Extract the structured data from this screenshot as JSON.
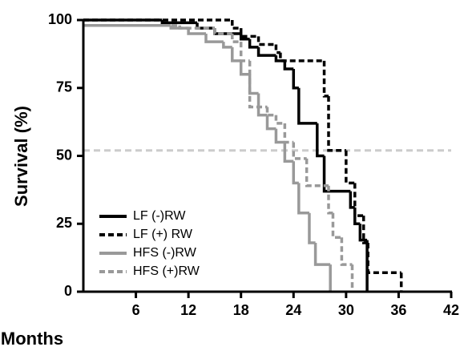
{
  "chart_data": {
    "type": "step",
    "x_label": "Months",
    "y_label": "Survival (%)",
    "xlim": [
      0,
      42
    ],
    "xticks": [
      6,
      12,
      18,
      24,
      30,
      36,
      42
    ],
    "ylim": [
      0,
      100
    ],
    "yticks": [
      0,
      25,
      50,
      75,
      100
    ],
    "reference_line": 52,
    "reference_color": "#cccccc",
    "legend": "lower left",
    "series": [
      {
        "name": "LF (-)RW",
        "color": "#000000",
        "dashed": false,
        "x": [
          0,
          9,
          13,
          15,
          18,
          19,
          20,
          22,
          23,
          24,
          24.6,
          26.7,
          27.5,
          30.5,
          31,
          31.6,
          32.4
        ],
        "values": [
          100,
          99,
          97,
          95,
          93,
          90,
          87,
          85,
          82,
          75,
          62,
          50,
          37,
          31,
          25,
          19,
          0
        ]
      },
      {
        "name": "LF (+) RW",
        "color": "#000000",
        "dashed": true,
        "x": [
          0,
          17,
          18,
          20,
          22,
          22.5,
          27.5,
          28,
          30,
          31,
          32,
          32.5,
          36.3
        ],
        "values": [
          100,
          97,
          94,
          91,
          88,
          85,
          72,
          52,
          40,
          28,
          18,
          7,
          0
        ]
      },
      {
        "name": "HFS (-)RW",
        "color": "#999999",
        "dashed": false,
        "x": [
          0,
          10,
          12,
          14,
          16,
          17,
          18,
          19,
          20,
          21,
          22,
          23,
          24,
          24.6,
          25.8,
          26.5,
          28.2
        ],
        "values": [
          98,
          97,
          95,
          92,
          90,
          85,
          80,
          73,
          65,
          60,
          55,
          48,
          40,
          29,
          18,
          10,
          0
        ]
      },
      {
        "name": "HFS (+)RW",
        "color": "#999999",
        "dashed": true,
        "x": [
          0,
          11,
          15,
          17,
          18,
          19,
          21,
          22,
          23,
          24,
          25.5,
          28,
          28.5,
          29.5,
          30.7
        ],
        "values": [
          98,
          97,
          95,
          92,
          85,
          68,
          65,
          62,
          55,
          49,
          39,
          29,
          20,
          10,
          0
        ]
      }
    ]
  }
}
